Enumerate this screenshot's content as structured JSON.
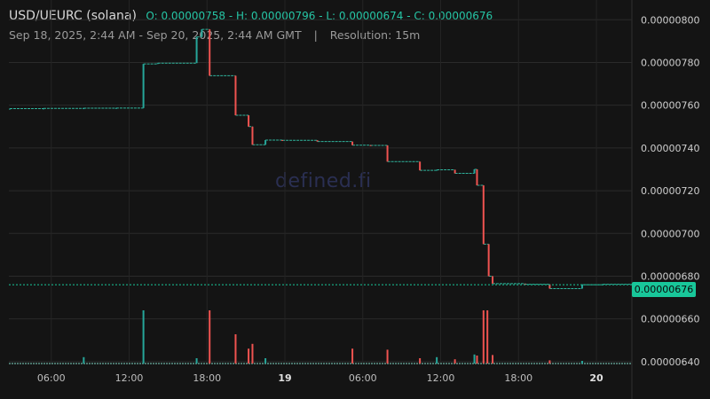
{
  "header": {
    "pair": "USD/UEURC (solana)",
    "ohlc": "O: 0.00000758 - H: 0.00000796 - L: 0.00000674 - C: 0.00000676",
    "range": "Sep 18, 2025, 2:44 AM - Sep 20, 2025, 2:44 AM GMT",
    "separator": "|",
    "resolution": "Resolution: 15m"
  },
  "watermark": "defined.fi",
  "last_price_label": "0.00000676",
  "colors": {
    "up": "#26a69a",
    "down": "#ef5350",
    "background": "#141414",
    "badge": "#18c79a"
  },
  "chart_data": {
    "type": "candlestick",
    "y_tick_labels": [
      "0.00000800",
      "0.00000780",
      "0.00000760",
      "0.00000740",
      "0.00000720",
      "0.00000700",
      "0.00000680",
      "0.00000660",
      "0.00000640"
    ],
    "y_ticks": [
      8.0,
      7.8,
      7.6,
      7.4,
      7.2,
      7.0,
      6.8,
      6.6,
      6.4
    ],
    "ylim": [
      6.387,
      8.051
    ],
    "y_unit_scale": 1e-06,
    "x_tick_labels": [
      "06:00",
      "12:00",
      "18:00",
      "19",
      "06:00",
      "12:00",
      "18:00",
      "20"
    ],
    "x_tick_bold": [
      false,
      false,
      false,
      true,
      false,
      false,
      false,
      true
    ],
    "x_ticks_hours": [
      6,
      12,
      18,
      24,
      30,
      36,
      42,
      48
    ],
    "xlim_hours": [
      2.733,
      50.733
    ],
    "last_price": 6.76,
    "candles": [
      {
        "t": 2.8,
        "o": 7.584,
        "c": 7.584
      },
      {
        "t": 5.4,
        "o": 7.585,
        "c": 7.585
      },
      {
        "t": 8.5,
        "o": 7.586,
        "c": 7.586
      },
      {
        "t": 11.0,
        "o": 7.587,
        "c": 7.587
      },
      {
        "t": 13.1,
        "o": 7.587,
        "c": 7.793
      },
      {
        "t": 14.2,
        "o": 7.793,
        "c": 7.797
      },
      {
        "t": 17.2,
        "o": 7.797,
        "c": 7.92
      },
      {
        "t": 17.6,
        "o": 7.92,
        "c": 7.955
      },
      {
        "t": 18.2,
        "o": 7.955,
        "c": 7.738
      },
      {
        "t": 20.2,
        "o": 7.738,
        "c": 7.553
      },
      {
        "t": 21.2,
        "o": 7.553,
        "c": 7.5
      },
      {
        "t": 21.5,
        "o": 7.5,
        "c": 7.415
      },
      {
        "t": 22.5,
        "o": 7.415,
        "c": 7.437
      },
      {
        "t": 23.8,
        "o": 7.437,
        "c": 7.436
      },
      {
        "t": 26.5,
        "o": 7.436,
        "c": 7.43
      },
      {
        "t": 29.2,
        "o": 7.43,
        "c": 7.413
      },
      {
        "t": 30.6,
        "o": 7.413,
        "c": 7.412
      },
      {
        "t": 31.9,
        "o": 7.412,
        "c": 7.336
      },
      {
        "t": 34.4,
        "o": 7.336,
        "c": 7.295
      },
      {
        "t": 35.7,
        "o": 7.295,
        "c": 7.298
      },
      {
        "t": 37.1,
        "o": 7.298,
        "c": 7.281
      },
      {
        "t": 38.6,
        "o": 7.281,
        "c": 7.3
      },
      {
        "t": 38.8,
        "o": 7.3,
        "c": 7.225
      },
      {
        "t": 39.3,
        "o": 7.225,
        "c": 6.95
      },
      {
        "t": 39.7,
        "o": 6.95,
        "c": 6.8
      },
      {
        "t": 40.0,
        "o": 6.8,
        "c": 6.765
      },
      {
        "t": 42.5,
        "o": 6.765,
        "c": 6.762
      },
      {
        "t": 44.4,
        "o": 6.762,
        "c": 6.742
      },
      {
        "t": 46.9,
        "o": 6.742,
        "c": 6.76
      },
      {
        "t": 48.5,
        "o": 6.76,
        "c": 6.762
      }
    ],
    "volume": [
      {
        "t": 8.5,
        "v": 0.12,
        "up": true
      },
      {
        "t": 13.1,
        "v": 1.0,
        "up": true
      },
      {
        "t": 17.2,
        "v": 0.1,
        "up": true
      },
      {
        "t": 18.2,
        "v": 1.0,
        "up": false
      },
      {
        "t": 20.2,
        "v": 0.55,
        "up": false
      },
      {
        "t": 21.2,
        "v": 0.28,
        "up": false
      },
      {
        "t": 21.5,
        "v": 0.37,
        "up": false
      },
      {
        "t": 22.5,
        "v": 0.1,
        "up": true
      },
      {
        "t": 29.2,
        "v": 0.28,
        "up": false
      },
      {
        "t": 31.9,
        "v": 0.26,
        "up": false
      },
      {
        "t": 34.4,
        "v": 0.1,
        "up": false
      },
      {
        "t": 35.7,
        "v": 0.12,
        "up": true
      },
      {
        "t": 37.1,
        "v": 0.08,
        "up": false
      },
      {
        "t": 38.6,
        "v": 0.17,
        "up": true
      },
      {
        "t": 38.8,
        "v": 0.15,
        "up": false
      },
      {
        "t": 39.3,
        "v": 1.0,
        "up": false
      },
      {
        "t": 39.6,
        "v": 1.0,
        "up": false
      },
      {
        "t": 40.0,
        "v": 0.16,
        "up": false
      },
      {
        "t": 44.4,
        "v": 0.06,
        "up": false
      },
      {
        "t": 46.9,
        "v": 0.05,
        "up": true
      }
    ]
  }
}
